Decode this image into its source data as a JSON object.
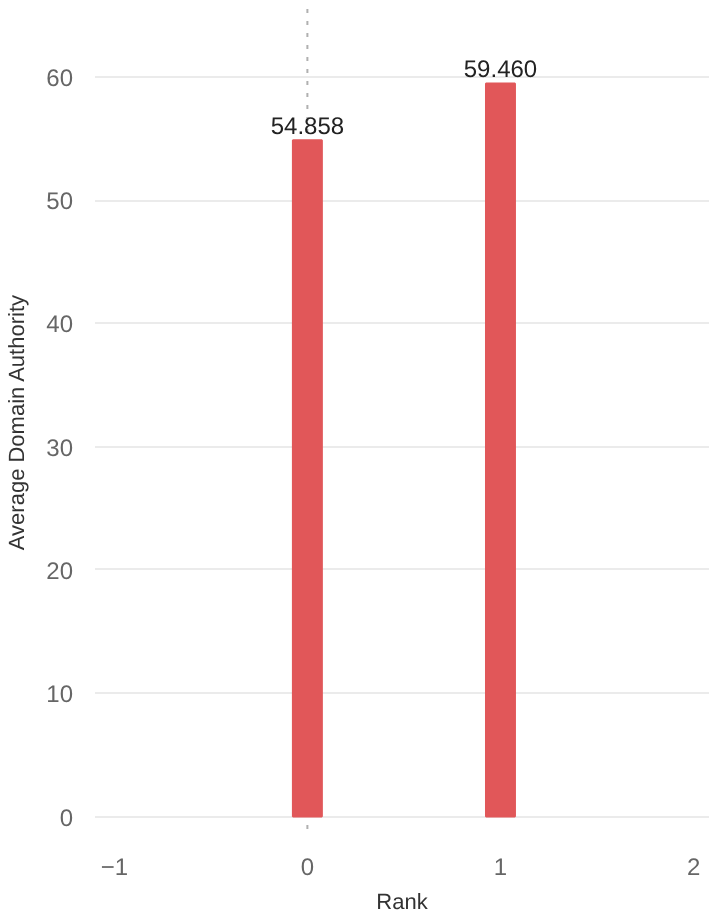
{
  "chart_data": {
    "type": "bar",
    "xlabel": "Rank",
    "ylabel": "Average Domain Authority",
    "x": [
      0,
      1
    ],
    "values": [
      54.858,
      59.46
    ],
    "value_labels": [
      "54.858",
      "59.460"
    ],
    "color": "#e15759",
    "xlim": [
      -1.1,
      2.08
    ],
    "xticks": [
      -1,
      0,
      1,
      2
    ],
    "ylim": [
      -1.5,
      65.5
    ],
    "yticks": [
      0,
      10,
      20,
      30,
      40,
      50,
      60
    ],
    "grid": "y",
    "ref_lines": [
      {
        "axis": "x",
        "value": 0,
        "label": null,
        "line_style": "dotted",
        "color": "#b0b0b0"
      }
    ]
  }
}
